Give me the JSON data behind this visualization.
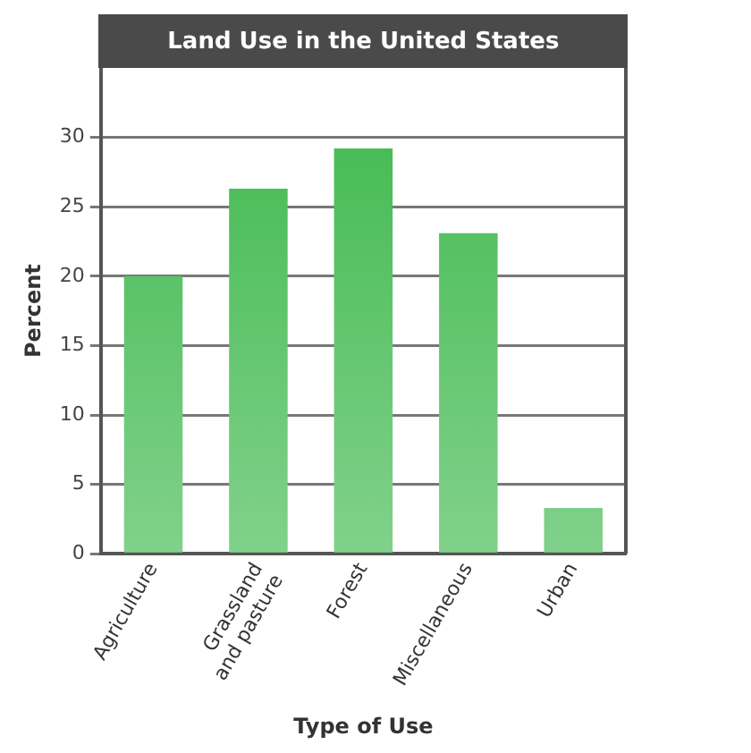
{
  "chart_data": {
    "type": "bar",
    "title": "Land Use in the United States",
    "xlabel": "Type of Use",
    "ylabel": "Percent",
    "categories": [
      "Agriculture",
      "Grassland\nand pasture",
      "Forest",
      "Miscellaneous",
      "Urban"
    ],
    "values": [
      20,
      26.3,
      29.2,
      23.1,
      3.3
    ],
    "color": "#3db84c",
    "ylim": [
      0,
      35
    ],
    "yticks": [
      0,
      5,
      10,
      15,
      20,
      25,
      30
    ],
    "grid": "y",
    "legend": false
  }
}
